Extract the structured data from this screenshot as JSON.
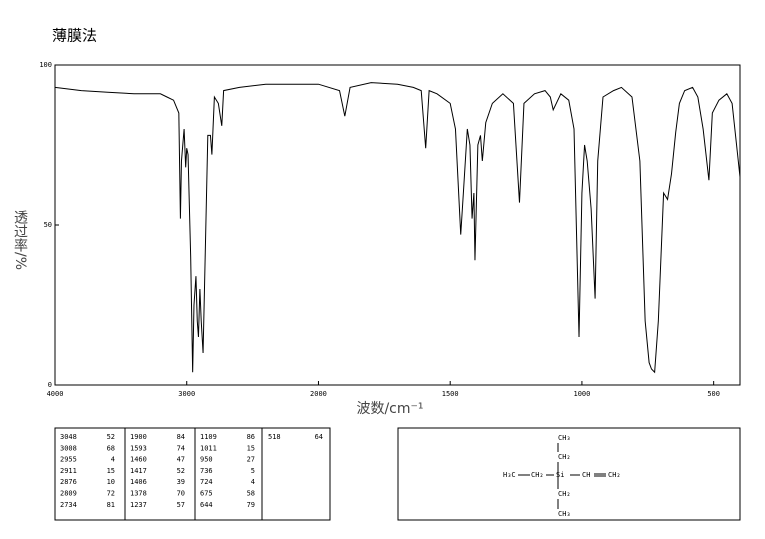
{
  "chart_data": {
    "type": "line",
    "title": "薄膜法",
    "x_label": "波数/cm⁻¹",
    "y_label": "透过率/%",
    "x": [
      4000,
      3800,
      3600,
      3400,
      3200,
      3150,
      3100,
      3060,
      3048,
      3040,
      3020,
      3008,
      3000,
      2990,
      2970,
      2955,
      2945,
      2930,
      2920,
      2911,
      2900,
      2890,
      2876,
      2860,
      2840,
      2820,
      2809,
      2790,
      2760,
      2734,
      2720,
      2600,
      2400,
      2200,
      2000,
      1920,
      1900,
      1880,
      1800,
      1700,
      1640,
      1610,
      1593,
      1580,
      1550,
      1500,
      1480,
      1460,
      1450,
      1435,
      1425,
      1417,
      1410,
      1406,
      1395,
      1385,
      1378,
      1365,
      1340,
      1300,
      1260,
      1237,
      1220,
      1180,
      1140,
      1120,
      1109,
      1080,
      1050,
      1030,
      1011,
      1000,
      990,
      980,
      965,
      950,
      940,
      920,
      880,
      850,
      810,
      780,
      760,
      745,
      736,
      724,
      710,
      690,
      675,
      660,
      644,
      630,
      610,
      580,
      560,
      540,
      518,
      505,
      480,
      450,
      430,
      400
    ],
    "series": [
      {
        "color": "#000000",
        "values": [
          93,
          92,
          91.5,
          91,
          91,
          90,
          89,
          85,
          52,
          70,
          80,
          68,
          74,
          72,
          40,
          4,
          25,
          34,
          20,
          15,
          30,
          20,
          10,
          40,
          78,
          78,
          72,
          90,
          88,
          81,
          92,
          93,
          94,
          94,
          94,
          92,
          84,
          93,
          94.5,
          94,
          93,
          92,
          74,
          92,
          91,
          88,
          80,
          47,
          60,
          80,
          75,
          52,
          60,
          39,
          75,
          78,
          70,
          82,
          88,
          91,
          88,
          57,
          88,
          91,
          92,
          90,
          86,
          91,
          89,
          80,
          15,
          60,
          75,
          70,
          55,
          27,
          70,
          90,
          92,
          93,
          90,
          70,
          20,
          7,
          5,
          4,
          20,
          60,
          58,
          66,
          79,
          88,
          92,
          93,
          90,
          80,
          64,
          85,
          89,
          91,
          88,
          65
        ]
      }
    ],
    "xlim": [
      4000,
      400
    ],
    "ylim": [
      0,
      100
    ],
    "xticks": [
      4000,
      3000,
      2000,
      1500,
      1000,
      500
    ],
    "yticks": [
      0,
      50,
      100
    ]
  },
  "peak_table": [
    [
      [
        3048,
        52
      ],
      [
        3008,
        68
      ],
      [
        2955,
        4
      ],
      [
        2911,
        15
      ],
      [
        2876,
        10
      ],
      [
        2809,
        72
      ],
      [
        2734,
        81
      ]
    ],
    [
      [
        1900,
        84
      ],
      [
        1593,
        74
      ],
      [
        1460,
        47
      ],
      [
        1417,
        52
      ],
      [
        1406,
        39
      ],
      [
        1378,
        70
      ],
      [
        1237,
        57
      ]
    ],
    [
      [
        1109,
        86
      ],
      [
        1011,
        15
      ],
      [
        950,
        27
      ],
      [
        736,
        5
      ],
      [
        724,
        4
      ],
      [
        675,
        58
      ],
      [
        644,
        79
      ]
    ],
    [
      [
        518,
        64
      ]
    ]
  ],
  "structure": {
    "top_1": "CH₃",
    "top_2": "CH₂",
    "left_1": "H₃C",
    "left_2": "CH₂",
    "center": "Si",
    "right_1": "CH",
    "right_2": "CH₂",
    "bottom_1": "CH₂",
    "bottom_2": "CH₃"
  }
}
